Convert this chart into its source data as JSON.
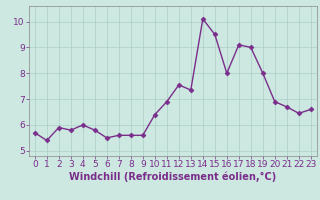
{
  "x": [
    0,
    1,
    2,
    3,
    4,
    5,
    6,
    7,
    8,
    9,
    10,
    11,
    12,
    13,
    14,
    15,
    16,
    17,
    18,
    19,
    20,
    21,
    22,
    23
  ],
  "y": [
    5.7,
    5.4,
    5.9,
    5.8,
    6.0,
    5.8,
    5.5,
    5.6,
    5.6,
    5.6,
    6.4,
    6.9,
    7.55,
    7.35,
    10.1,
    9.5,
    8.0,
    9.1,
    9.0,
    8.0,
    6.9,
    6.7,
    6.45,
    6.6
  ],
  "line_color": "#7B2D8B",
  "marker": "D",
  "marker_size": 2.5,
  "line_width": 1.0,
  "bg_color": "#CCE8E0",
  "grid_color": "#AACFC8",
  "xlabel": "Windchill (Refroidissement éolien,°C)",
  "xlabel_color": "#7B2D8B",
  "xlabel_fontsize": 7,
  "tick_color": "#7B2D8B",
  "tick_fontsize": 6.5,
  "xlim": [
    -0.5,
    23.5
  ],
  "ylim": [
    4.8,
    10.6
  ],
  "yticks": [
    5,
    6,
    7,
    8,
    9,
    10
  ],
  "xticks": [
    0,
    1,
    2,
    3,
    4,
    5,
    6,
    7,
    8,
    9,
    10,
    11,
    12,
    13,
    14,
    15,
    16,
    17,
    18,
    19,
    20,
    21,
    22,
    23
  ]
}
